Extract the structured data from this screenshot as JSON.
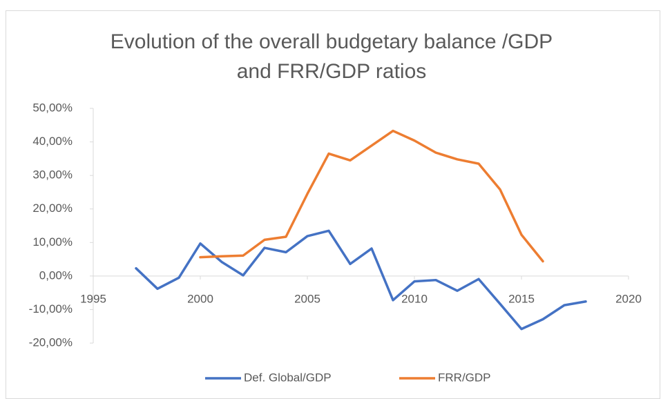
{
  "chart_data": {
    "type": "line",
    "title_lines": [
      "Evolution of the overall budgetary balance /GDP",
      "and FRR/GDP ratios"
    ],
    "x": [
      1997,
      1998,
      1999,
      2000,
      2001,
      2002,
      2003,
      2004,
      2005,
      2006,
      2007,
      2008,
      2009,
      2010,
      2011,
      2012,
      2013,
      2014,
      2015,
      2016,
      2017,
      2018
    ],
    "series": [
      {
        "name": "Def. Global/GDP",
        "color": "#4472c4",
        "values": [
          2.3,
          -3.8,
          -0.5,
          9.7,
          4.2,
          0.2,
          8.4,
          7.1,
          11.9,
          13.5,
          3.6,
          8.2,
          -7.2,
          -1.6,
          -1.2,
          -4.4,
          -0.9,
          -8.3,
          -15.8,
          -12.9,
          -8.7,
          -7.6
        ]
      },
      {
        "name": "FRR/GDP",
        "color": "#ed7d31",
        "values": [
          null,
          null,
          null,
          5.6,
          5.9,
          6.1,
          10.8,
          11.7,
          24.5,
          36.5,
          34.5,
          38.9,
          43.3,
          40.4,
          36.8,
          34.8,
          33.5,
          25.8,
          12.3,
          4.4,
          null,
          null
        ]
      }
    ],
    "xlim": [
      1995,
      2020
    ],
    "xticks": [
      1995,
      2000,
      2005,
      2010,
      2015,
      2020
    ],
    "ylim": [
      -20,
      50
    ],
    "yticks": [
      {
        "value": -20,
        "label": "-20,00%"
      },
      {
        "value": -10,
        "label": "-10,00%"
      },
      {
        "value": 0,
        "label": "0,00%"
      },
      {
        "value": 10,
        "label": "10,00%"
      },
      {
        "value": 20,
        "label": "20,00%"
      },
      {
        "value": 30,
        "label": "30,00%"
      },
      {
        "value": 40,
        "label": "40,00%"
      },
      {
        "value": 50,
        "label": "50,00%"
      }
    ],
    "grid": false,
    "legend": "bottom"
  }
}
